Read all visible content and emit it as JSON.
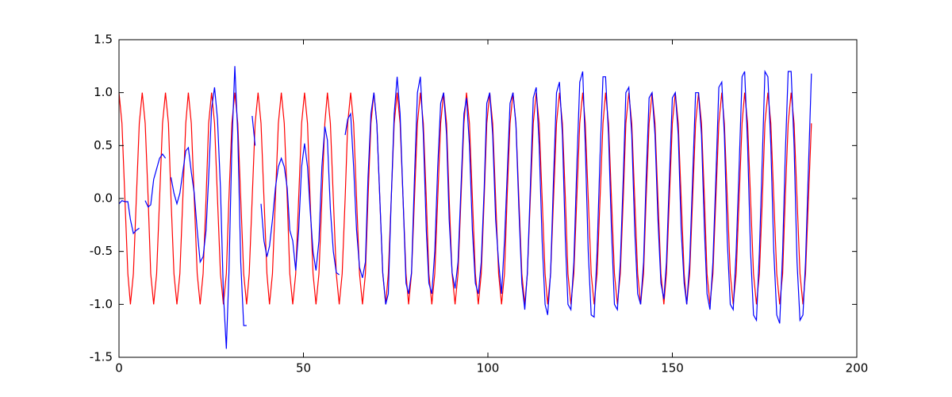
{
  "chart_data": {
    "type": "line",
    "x": [
      0,
      0.8,
      1.6,
      2.4,
      3.1,
      3.9,
      4.7,
      5.5,
      6.3,
      7.1,
      7.9,
      8.6,
      9.4,
      10.2,
      11.0,
      11.8,
      12.6,
      13.4,
      14.1,
      14.9,
      15.7,
      16.5,
      17.3,
      18.1,
      18.8,
      19.6,
      20.4,
      21.2,
      22.0,
      22.8,
      23.6,
      24.3,
      25.1,
      25.9,
      26.7,
      27.5,
      28.3,
      29.1,
      29.8,
      30.6,
      31.4,
      32.2,
      33.0,
      33.8,
      34.6,
      35.3,
      36.1,
      36.9,
      37.7,
      38.5,
      39.3,
      40.1,
      40.8,
      41.6,
      42.4,
      43.2,
      44.0,
      44.8,
      45.6,
      46.3,
      47.1,
      47.9,
      48.7,
      49.5,
      50.3,
      51.1,
      51.8,
      52.6,
      53.4,
      54.2,
      55.0,
      55.8,
      56.5,
      57.3,
      58.1,
      58.9,
      59.7,
      60.5,
      61.3,
      62.0,
      62.8,
      63.6,
      64.4,
      65.2,
      66.0,
      66.8,
      67.5,
      68.3,
      69.1,
      69.9,
      70.7,
      71.5,
      72.3,
      73.0,
      73.8,
      74.6,
      75.4,
      76.2,
      77.0,
      77.8,
      78.5,
      79.3,
      80.1,
      80.9,
      81.7,
      82.5,
      83.3,
      84.0,
      84.8,
      85.6,
      86.4,
      87.2,
      88.0,
      88.8,
      89.5,
      90.3,
      91.1,
      91.9,
      92.7,
      93.5,
      94.2,
      95.0,
      95.8,
      96.6,
      97.4,
      98.2,
      99.0,
      99.7,
      100.5,
      101.3,
      102.1,
      102.9,
      103.7,
      104.5,
      105.2,
      106.0,
      106.8,
      107.6,
      108.4,
      109.2,
      110.0,
      110.7,
      111.5,
      112.3,
      113.1,
      113.9,
      114.7,
      115.5,
      116.2,
      117.0,
      117.8,
      118.6,
      119.4,
      120.2,
      121.0,
      121.7,
      122.5,
      123.3,
      124.1,
      124.9,
      125.7,
      126.4,
      127.2,
      128.0,
      128.8,
      129.6,
      130.4,
      131.2,
      131.9,
      132.7,
      133.5,
      134.3,
      135.1,
      135.9,
      136.7,
      137.4,
      138.2,
      139.0,
      139.8,
      140.6,
      141.4,
      142.2,
      142.9,
      143.7,
      144.5,
      145.3,
      146.1,
      146.9,
      147.7,
      148.4,
      149.2,
      150.0,
      150.8,
      151.6,
      152.4,
      153.2,
      153.9,
      154.7,
      155.5,
      156.3,
      157.1,
      157.9,
      158.7,
      159.4,
      160.2,
      161.0,
      161.8,
      162.6,
      163.4,
      164.1,
      164.9,
      165.7,
      166.5,
      167.3,
      168.1,
      168.9,
      169.6,
      170.4,
      171.2,
      172.0,
      172.8,
      173.6,
      174.4,
      175.1,
      175.9,
      176.7,
      177.5,
      178.3,
      179.1,
      179.9,
      180.6,
      181.4,
      182.2,
      183.0,
      183.8,
      184.6,
      185.4,
      186.1,
      186.9,
      187.7
    ],
    "series": [
      {
        "color": "#ff0000",
        "values": [
          1,
          0.71,
          0,
          -0.71,
          -1,
          -0.71,
          0,
          0.71,
          1,
          0.71,
          0,
          -0.71,
          -1,
          -0.71,
          0,
          0.71,
          1,
          0.71,
          0,
          -0.71,
          -1,
          -0.71,
          0,
          0.71,
          1,
          0.71,
          0,
          -0.71,
          -1,
          -0.71,
          0,
          0.71,
          1,
          0.71,
          0,
          -0.71,
          -1,
          -0.71,
          0,
          0.71,
          1,
          0.71,
          0,
          -0.71,
          -1,
          -0.71,
          0,
          0.71,
          1,
          0.71,
          0,
          -0.71,
          -1,
          -0.71,
          0,
          0.71,
          1,
          0.71,
          0,
          -0.71,
          -1,
          -0.71,
          0,
          0.71,
          1,
          0.71,
          0,
          -0.71,
          -1,
          -0.71,
          0,
          0.71,
          1,
          0.71,
          0,
          -0.71,
          -1,
          -0.71,
          0,
          0.71,
          1,
          0.71,
          0,
          -0.71,
          -1,
          -0.71,
          0,
          0.71,
          1,
          0.71,
          0,
          -0.71,
          -1,
          -0.71,
          0,
          0.71,
          1,
          0.71,
          0,
          -0.71,
          -1,
          -0.71,
          0,
          0.71,
          1,
          0.71,
          0,
          -0.71,
          -1,
          -0.71,
          0,
          0.71,
          1,
          0.71,
          0,
          -0.71,
          -1,
          -0.71,
          0,
          0.71,
          1,
          0.71,
          0,
          -0.71,
          -1,
          -0.71,
          0,
          0.71,
          1,
          0.71,
          0,
          -0.71,
          -1,
          -0.71,
          0,
          0.71,
          1,
          0.71,
          0,
          -0.71,
          -1,
          -0.71,
          0,
          0.71,
          1,
          0.71,
          0,
          -0.71,
          -1,
          -0.71,
          0,
          0.71,
          1,
          0.71,
          0,
          -0.71,
          -1,
          -0.71,
          0,
          0.71,
          1,
          0.71,
          0,
          -0.71,
          -1,
          -0.71,
          0,
          0.71,
          1,
          0.71,
          0,
          -0.71,
          -1,
          -0.71,
          0,
          0.71,
          1,
          0.71,
          0,
          -0.71,
          -1,
          -0.71,
          0,
          0.71,
          1,
          0.71,
          0,
          -0.71,
          -1,
          -0.71,
          0,
          0.71,
          1,
          0.71,
          0,
          -0.71,
          -1,
          -0.71,
          0,
          0.71,
          1,
          0.71,
          0,
          -0.71,
          -1,
          -0.71,
          0,
          0.71,
          1,
          0.71,
          0,
          -0.71,
          -1,
          -0.71,
          0,
          0.71,
          1,
          0.71,
          0,
          -0.71,
          -1,
          -0.71,
          0,
          0.71,
          1,
          0.71,
          0,
          -0.71,
          -1,
          -0.71,
          0,
          0.71,
          1,
          0.71,
          0,
          -0.71,
          -1,
          -0.71,
          0,
          0.71
        ]
      },
      {
        "color": "#0000ff",
        "values": [
          -0.05,
          -0.02,
          -0.03,
          -0.03,
          -0.2,
          -0.33,
          -0.3,
          -0.28,
          null,
          -0.02,
          -0.08,
          -0.06,
          0.18,
          0.28,
          0.38,
          0.42,
          0.38,
          null,
          0.2,
          0.05,
          -0.05,
          0.05,
          0.25,
          0.45,
          0.48,
          0.25,
          0.05,
          -0.3,
          -0.6,
          -0.55,
          -0.3,
          0.2,
          0.85,
          1.05,
          0.75,
          0.1,
          -0.9,
          -1.42,
          -0.7,
          0.5,
          1.25,
          0.6,
          -0.6,
          -1.2,
          -1.2,
          null,
          0.78,
          0.5,
          null,
          -0.05,
          -0.4,
          -0.55,
          -0.45,
          -0.2,
          0.1,
          0.3,
          0.38,
          0.3,
          0.1,
          -0.3,
          -0.4,
          -0.68,
          -0.3,
          0.3,
          0.52,
          0.3,
          -0.1,
          -0.5,
          -0.68,
          -0.4,
          0.3,
          0.68,
          0.55,
          -0.1,
          -0.5,
          -0.7,
          -0.72,
          null,
          0.6,
          0.75,
          0.8,
          0.3,
          -0.3,
          -0.65,
          -0.75,
          -0.6,
          0.2,
          0.8,
          1.0,
          0.7,
          0.0,
          -0.7,
          -1.0,
          -0.9,
          0.0,
          0.8,
          1.15,
          0.8,
          0.0,
          -0.8,
          -0.9,
          -0.7,
          0.2,
          1.0,
          1.15,
          0.6,
          -0.3,
          -0.8,
          -0.9,
          -0.5,
          0.3,
          0.9,
          1.0,
          0.6,
          -0.2,
          -0.7,
          -0.85,
          -0.6,
          0.1,
          0.8,
          0.95,
          0.5,
          -0.3,
          -0.8,
          -0.9,
          -0.6,
          0.1,
          0.9,
          1.0,
          0.6,
          -0.2,
          -0.6,
          -0.9,
          -0.4,
          0.2,
          0.9,
          1.0,
          0.7,
          -0.1,
          -0.8,
          -1.05,
          -0.7,
          0.1,
          0.95,
          1.05,
          0.5,
          -0.4,
          -1.0,
          -1.1,
          -0.7,
          0.2,
          1.0,
          1.1,
          0.6,
          -0.4,
          -1.0,
          -1.05,
          -0.6,
          0.3,
          1.1,
          1.2,
          0.5,
          -0.5,
          -1.1,
          -1.12,
          -0.5,
          0.4,
          1.15,
          1.15,
          0.6,
          -0.3,
          -1.0,
          -1.05,
          -0.6,
          0.2,
          1.0,
          1.05,
          0.6,
          -0.3,
          -0.9,
          -1.0,
          -0.6,
          0.2,
          0.95,
          1.0,
          0.6,
          -0.2,
          -0.8,
          -0.95,
          -0.6,
          0.2,
          0.95,
          1.0,
          0.6,
          -0.3,
          -0.8,
          -1.0,
          -0.6,
          0.2,
          1.0,
          1.0,
          0.6,
          -0.3,
          -0.9,
          -1.05,
          -0.6,
          0.2,
          1.05,
          1.1,
          0.6,
          -0.4,
          -1.0,
          -1.05,
          -0.5,
          0.3,
          1.15,
          1.2,
          0.5,
          -0.5,
          -1.1,
          -1.15,
          -0.5,
          0.4,
          1.2,
          1.15,
          0.5,
          -0.5,
          -1.1,
          -1.18,
          -0.5,
          0.4,
          1.2,
          1.2,
          0.5,
          -0.6,
          -1.15,
          -1.1,
          -0.6,
          0.3,
          1.18
        ]
      }
    ],
    "xlim": [
      0,
      200
    ],
    "xticks": [
      0,
      50,
      100,
      150,
      200
    ],
    "ylim": [
      -1.5,
      1.5
    ],
    "yticks": [
      -1.5,
      {
        "value": -1,
        "label": "-1.0"
      },
      -0.5,
      {
        "value": 0,
        "label": "0.0"
      },
      0.5,
      {
        "value": 1,
        "label": "1.0"
      },
      1.5
    ],
    "grid": false
  }
}
